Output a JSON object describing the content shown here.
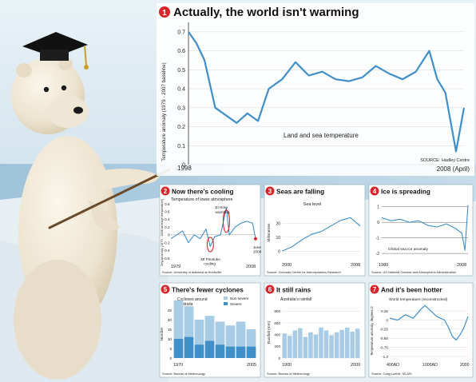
{
  "accent": "#d7262b",
  "line_color": "#3f8fc9",
  "main": {
    "num": "1",
    "title": "Actually, the world isn't warming",
    "ylabel": "Temperature anomaly (1979 - 2007 baseline)",
    "yticks": [
      "0.7",
      "0.6",
      "0.5",
      "0.4",
      "0.3",
      "0.2",
      "0.1",
      "0"
    ],
    "x_start": "1998",
    "x_end": "2008 (April)",
    "inline_label": "Land and sea temperature",
    "source": "SOURCE: Hadley Centre"
  },
  "panels": [
    {
      "num": "2",
      "title": "Now there's cooling",
      "subtitle": "Temperature of lower atmosphere",
      "ylabel": "Deg.anomaly (1979 - 1998 average temperature)",
      "yticks": [
        "0.8",
        "0.6",
        "0.4",
        "0.2",
        "0",
        "-0.2",
        "-0.4",
        "-0.6"
      ],
      "xstart": "1979",
      "xend": "2008",
      "ann1": "El Nino",
      "ann1b": "warming",
      "ann2": "Mt Pinatubo",
      "ann2b": "cooling",
      "ann3": "June",
      "ann3b": "2008",
      "source": "Source: University of Alabama at Huntsville"
    },
    {
      "num": "3",
      "title": "Seas are falling",
      "subtitle": "Sea level",
      "ylabel": "Millimetres",
      "yticks": [
        "20",
        "10",
        "0"
      ],
      "xstart": "2000",
      "xend": "2008",
      "source": "Source: Colorado Centre for Astrodynamics Research"
    },
    {
      "num": "4",
      "title": "Ice is spreading",
      "inline_label": "Global sea ice anomaly",
      "yticks": [
        "1",
        "0",
        "-1",
        "-2"
      ],
      "xstart": "1980",
      "xend": "2008",
      "source": "Source: US National Oceanic and Atmospheric Administration"
    },
    {
      "num": "5",
      "title": "There's fewer cyclones",
      "subtitle": "Cyclones around",
      "subtitle2": "Australia",
      "ylabel": "Number",
      "yticks": [
        "25",
        "20",
        "15",
        "10",
        "5",
        "0"
      ],
      "xstart": "1970",
      "xend": "2005",
      "legend": [
        "Non severe",
        "Severe"
      ],
      "source": "Source: Bureau of Meteorology"
    },
    {
      "num": "6",
      "title": "It still rains",
      "subtitle": "Australia's rainfall",
      "ylabel": "Rainfall (mm)",
      "yticks": [
        "800",
        "600",
        "400",
        "200",
        "0"
      ],
      "xstart": "1900",
      "xend": "2000",
      "source": "Source: Bureau of Meteorology"
    },
    {
      "num": "7",
      "title": "And it's been hotter",
      "subtitle": "World temperature (reconstructed)",
      "ylabel": "Temperature anomaly, degrees C",
      "yticks": [
        "0.25",
        "0",
        "-0.25",
        "-0.50",
        "-0.75",
        "-1.0"
      ],
      "xticks": [
        "400AD",
        "1000AD",
        "2000"
      ],
      "source": "Source: Craig Loehle, NCASI"
    }
  ],
  "chart_data": [
    {
      "type": "line",
      "title": "Actually, the world isn't warming",
      "ylabel": "Temperature anomaly (1979 - 2007 baseline)",
      "ylim": [
        0,
        0.75
      ],
      "x_range": [
        "1998",
        "2008 (April)"
      ],
      "series": [
        {
          "name": "Land and sea temperature",
          "x": [
            1998,
            1998.3,
            1998.6,
            1999,
            1999.4,
            1999.8,
            2000.2,
            2000.6,
            2001,
            2001.5,
            2002,
            2002.5,
            2003,
            2003.5,
            2004,
            2004.5,
            2005,
            2005.5,
            2006,
            2006.5,
            2007,
            2007.3,
            2007.6,
            2008,
            2008.3
          ],
          "values": [
            0.7,
            0.64,
            0.55,
            0.3,
            0.26,
            0.22,
            0.27,
            0.23,
            0.4,
            0.45,
            0.54,
            0.47,
            0.49,
            0.45,
            0.44,
            0.46,
            0.52,
            0.48,
            0.45,
            0.49,
            0.6,
            0.45,
            0.38,
            0.07,
            0.3
          ]
        }
      ]
    },
    {
      "type": "line",
      "title": "Now there's cooling",
      "ylim": [
        -0.6,
        0.8
      ],
      "x_range": [
        1979,
        2008
      ],
      "series": [
        {
          "x": [
            1979,
            1981,
            1983,
            1985,
            1987,
            1989,
            1991,
            1992.5,
            1994,
            1996,
            1998,
            1999,
            2001,
            2003,
            2005,
            2007,
            2008
          ],
          "values": [
            -0.1,
            0.0,
            0.1,
            -0.2,
            0.0,
            -0.1,
            0.15,
            -0.3,
            -0.05,
            0.0,
            0.7,
            0.0,
            0.2,
            0.3,
            0.35,
            0.3,
            -0.1
          ]
        }
      ]
    },
    {
      "type": "line",
      "title": "Seas are falling",
      "ylabel": "Millimetres",
      "ylim": [
        -5,
        35
      ],
      "x_range": [
        2000,
        2008
      ],
      "series": [
        {
          "name": "Sea level",
          "x": [
            2000,
            2001,
            2002,
            2003,
            2004,
            2005,
            2006,
            2007,
            2008
          ],
          "values": [
            0,
            3,
            8,
            12,
            14,
            18,
            22,
            24,
            18
          ]
        }
      ]
    },
    {
      "type": "line",
      "title": "Ice is spreading",
      "ylim": [
        -2.2,
        1.5
      ],
      "x_range": [
        1980,
        2008
      ],
      "series": [
        {
          "name": "Global sea ice anomaly",
          "x": [
            1980,
            1983,
            1986,
            1989,
            1992,
            1995,
            1998,
            2001,
            2004,
            2006,
            2007,
            2008
          ],
          "values": [
            0.3,
            0.1,
            0.2,
            0.0,
            0.1,
            -0.2,
            -0.3,
            -0.1,
            -0.4,
            -0.7,
            -1.8,
            1.1
          ]
        }
      ]
    },
    {
      "type": "bar",
      "title": "There's fewer cyclones",
      "ylabel": "Number",
      "ylim": [
        0,
        25
      ],
      "categories": [
        "1970",
        "1975",
        "1980",
        "1985",
        "1990",
        "1995",
        "2000",
        "2005"
      ],
      "series": [
        {
          "name": "Severe",
          "values": [
            10,
            11,
            7,
            9,
            7,
            6,
            6,
            6
          ]
        },
        {
          "name": "Non severe",
          "values": [
            20,
            16,
            13,
            13,
            12,
            11,
            13,
            9
          ]
        }
      ]
    },
    {
      "type": "bar",
      "title": "It still rains",
      "ylabel": "Rainfall (mm)",
      "ylim": [
        0,
        900
      ],
      "x_range": [
        1900,
        2000
      ],
      "values": [
        420,
        380,
        470,
        510,
        360,
        440,
        400,
        520,
        470,
        390,
        440,
        480,
        520,
        450,
        500
      ]
    },
    {
      "type": "line",
      "title": "And it's been hotter",
      "ylabel": "Temperature anomaly, degrees C",
      "ylim": [
        -1.0,
        0.45
      ],
      "x_range": [
        "400AD",
        "2000"
      ],
      "series": [
        {
          "name": "World temperature (reconstructed)",
          "x": [
            0,
            200,
            400,
            600,
            800,
            900,
            1000,
            1200,
            1400,
            1500,
            1600,
            1700,
            1800,
            1900,
            2000
          ],
          "values": [
            0.05,
            0.0,
            0.15,
            0.05,
            0.3,
            0.4,
            0.3,
            0.1,
            0.0,
            -0.2,
            -0.45,
            -0.55,
            -0.4,
            -0.2,
            0.1
          ]
        }
      ]
    }
  ]
}
